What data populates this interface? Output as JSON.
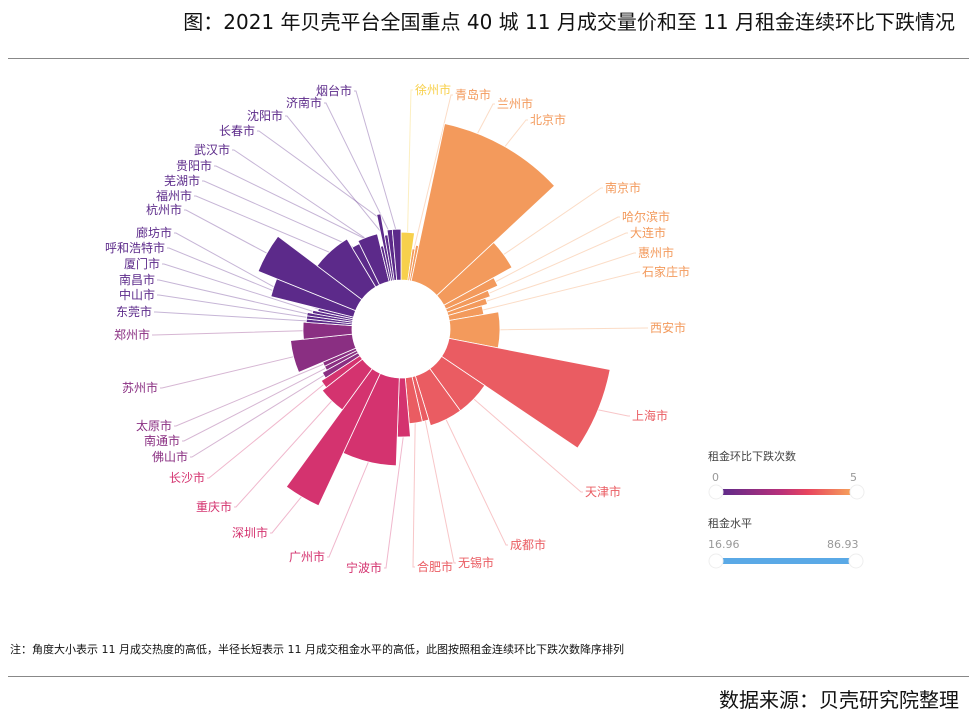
{
  "title": "图：2021 年贝壳平台全国重点 40 城 11 月成交量价和至 11 月租金连续环比下跌情况",
  "note": "注：角度大小表示 11 月成交热度的高低，半径长短表示 11 月成交租金水平的高低，此图按照租金连续环比下跌次数降序排列",
  "source": "数据来源：贝壳研究院整理",
  "legend": {
    "count_title": "租金环比下跌次数",
    "count_min": "0",
    "count_max": "5",
    "rent_title": "租金水平",
    "rent_min": "16.96",
    "rent_max": "86.93",
    "rent_color": "#5aa9e6"
  },
  "colors": {
    "0": "#5c2a8a",
    "1": "#8a2f82",
    "2": "#d4336f",
    "3": "#ea5c62",
    "4": "#f39a5c",
    "5": "#f7d04c"
  },
  "chart_data": {
    "type": "polar-bar (nightingale rose, variable angle)",
    "angle_encodes": "11月成交热度",
    "radius_encodes": "租金水平",
    "color_encodes": "租金环比下跌次数",
    "rent_range": [
      16.96,
      86.93
    ],
    "count_range": [
      0,
      5
    ],
    "cities": [
      {
        "name": "徐州市",
        "heat": 8,
        "rent": 25.4,
        "count": 5
      },
      {
        "name": "青岛市",
        "heat": 2,
        "rent": 17.0,
        "count": 4
      },
      {
        "name": "兰州市",
        "heat": 2,
        "rent": 19.1,
        "count": 4
      },
      {
        "name": "北京市",
        "heat": 35,
        "rent": 85.3,
        "count": 4
      },
      {
        "name": "南京市",
        "heat": 14,
        "rent": 41.3,
        "count": 4
      },
      {
        "name": "哈尔滨市",
        "heat": 5,
        "rent": 30.2,
        "count": 4
      },
      {
        "name": "大连市",
        "heat": 4,
        "rent": 24.4,
        "count": 4
      },
      {
        "name": "惠州市",
        "heat": 4,
        "rent": 21.7,
        "count": 4
      },
      {
        "name": "石家庄市",
        "heat": 6,
        "rent": 18.6,
        "count": 4
      },
      {
        "name": "西安市",
        "heat": 21,
        "rent": 26.5,
        "count": 4
      },
      {
        "name": "上海市",
        "heat": 23,
        "rent": 86.93,
        "count": 3
      },
      {
        "name": "天津市",
        "heat": 20,
        "rent": 27.6,
        "count": 3
      },
      {
        "name": "成都市",
        "heat": 19,
        "rent": 27.6,
        "count": 3
      },
      {
        "name": "无锡市",
        "heat": 4,
        "rent": 24.4,
        "count": 3
      },
      {
        "name": "合肥市",
        "heat": 8,
        "rent": 24.4,
        "count": 3
      },
      {
        "name": "宁波市",
        "heat": 7,
        "rent": 31.3,
        "count": 2
      },
      {
        "name": "广州市",
        "heat": 23,
        "rent": 46.6,
        "count": 2
      },
      {
        "name": "深圳市",
        "heat": 11,
        "rent": 77.4,
        "count": 2
      },
      {
        "name": "重庆市",
        "heat": 16,
        "rent": 27.0,
        "count": 2
      },
      {
        "name": "长沙市",
        "heat": 5,
        "rent": 24.4,
        "count": 2
      },
      {
        "name": "佛山市",
        "heat": 4,
        "rent": 21.7,
        "count": 1
      },
      {
        "name": "南通市",
        "heat": 3,
        "rent": 19.1,
        "count": 1
      },
      {
        "name": "太原市",
        "heat": 3,
        "rent": 19.1,
        "count": 1
      },
      {
        "name": "苏州市",
        "heat": 17,
        "rent": 32.9,
        "count": 1
      },
      {
        "name": "郑州市",
        "heat": 10,
        "rent": 26.0,
        "count": 1
      },
      {
        "name": "东莞市",
        "heat": 2,
        "rent": 24.4,
        "count": 0
      },
      {
        "name": "中山市",
        "heat": 2,
        "rent": 24.4,
        "count": 0
      },
      {
        "name": "南昌市",
        "heat": 2,
        "rent": 24.4,
        "count": 0
      },
      {
        "name": "厦门市",
        "heat": 2,
        "rent": 21.7,
        "count": 0
      },
      {
        "name": "呼和浩特市",
        "heat": 2,
        "rent": 19.1,
        "count": 0
      },
      {
        "name": "廊坊市",
        "heat": 8,
        "rent": 45.1,
        "count": 0
      },
      {
        "name": "杭州市",
        "heat": 15,
        "rent": 55.7,
        "count": 0
      },
      {
        "name": "福州市",
        "heat": 22,
        "rent": 29.7,
        "count": 0
      },
      {
        "name": "芜湖市",
        "heat": 5,
        "rent": 24.4,
        "count": 0
      },
      {
        "name": "贵阳市",
        "heat": 12,
        "rent": 26.0,
        "count": 0
      },
      {
        "name": "武汉市",
        "heat": 2,
        "rent": 19.1,
        "count": 0
      },
      {
        "name": "长春市",
        "heat": 2,
        "rent": 36.0,
        "count": 0
      },
      {
        "name": "沈阳市",
        "heat": 2,
        "rent": 24.4,
        "count": 0
      },
      {
        "name": "济南市",
        "heat": 3,
        "rent": 27.0,
        "count": 0
      },
      {
        "name": "烟台市",
        "heat": 5,
        "rent": 27.0,
        "count": 0
      }
    ]
  }
}
